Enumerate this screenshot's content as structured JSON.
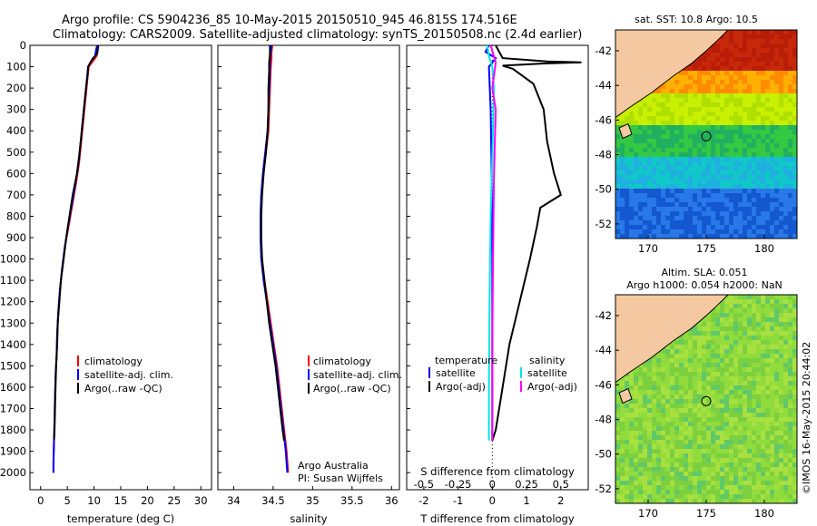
{
  "header": {
    "line1": "Argo profile: CS 5904236_85 10-May-2015 20150510_945 46.815S 174.516E",
    "line2": "Climatology: CARS2009. Satellite-adjusted climatology: synTS_20150508.nc (2.4d earlier)"
  },
  "chart_data": [
    {
      "name": "temperature-profile",
      "type": "line",
      "xlabel": "temperature (deg C)",
      "xticks": [
        "0",
        "5",
        "10",
        "15",
        "20",
        "25",
        "30"
      ],
      "xlim": [
        -2,
        32
      ],
      "ylim": [
        0,
        2080
      ],
      "yticks": [
        "0",
        "100",
        "200",
        "300",
        "400",
        "500",
        "600",
        "700",
        "800",
        "900",
        "1000",
        "1100",
        "1200",
        "1300",
        "1400",
        "1500",
        "1600",
        "1700",
        "1800",
        "1900",
        "2000"
      ],
      "legend": [
        "climatology",
        "satellite-adj. clim.",
        "Argo(..raw -QC)"
      ],
      "series": [
        {
          "name": "climatology",
          "color": "#ff0000",
          "points": [
            [
              10.8,
              0
            ],
            [
              10.6,
              20
            ],
            [
              10.5,
              50
            ],
            [
              9.9,
              70
            ],
            [
              9.0,
              100
            ],
            [
              8.8,
              150
            ],
            [
              8.4,
              250
            ],
            [
              8.0,
              350
            ],
            [
              7.6,
              450
            ],
            [
              7.2,
              550
            ],
            [
              6.6,
              650
            ],
            [
              5.9,
              750
            ],
            [
              5.2,
              850
            ],
            [
              4.5,
              950
            ],
            [
              4.0,
              1050
            ],
            [
              3.6,
              1150
            ],
            [
              3.3,
              1250
            ],
            [
              3.1,
              1350
            ],
            [
              3.0,
              1450
            ],
            [
              2.8,
              1550
            ],
            [
              2.7,
              1650
            ],
            [
              2.6,
              1750
            ],
            [
              2.5,
              1850
            ],
            [
              2.4,
              1950
            ],
            [
              2.4,
              2000
            ]
          ]
        },
        {
          "name": "satellite-adj. clim.",
          "color": "#0000ff",
          "points": [
            [
              10.6,
              0
            ],
            [
              10.4,
              20
            ],
            [
              10.2,
              50
            ],
            [
              9.6,
              70
            ],
            [
              8.9,
              100
            ],
            [
              8.7,
              150
            ],
            [
              8.3,
              250
            ],
            [
              7.9,
              350
            ],
            [
              7.5,
              450
            ],
            [
              7.1,
              550
            ],
            [
              6.5,
              650
            ],
            [
              5.8,
              750
            ],
            [
              5.1,
              850
            ],
            [
              4.5,
              950
            ],
            [
              4.0,
              1050
            ],
            [
              3.6,
              1150
            ],
            [
              3.3,
              1250
            ],
            [
              3.1,
              1350
            ],
            [
              3.0,
              1450
            ],
            [
              2.8,
              1550
            ],
            [
              2.7,
              1650
            ],
            [
              2.6,
              1750
            ],
            [
              2.5,
              1850
            ],
            [
              2.4,
              1950
            ],
            [
              2.4,
              2000
            ]
          ]
        },
        {
          "name": "Argo(..raw -QC)",
          "color": "#000000",
          "points": [
            [
              10.8,
              0
            ],
            [
              10.7,
              20
            ],
            [
              10.6,
              40
            ],
            [
              9.8,
              60
            ],
            [
              9.3,
              80
            ],
            [
              8.9,
              100
            ],
            [
              8.8,
              140
            ],
            [
              8.5,
              200
            ],
            [
              8.1,
              300
            ],
            [
              7.7,
              400
            ],
            [
              7.3,
              500
            ],
            [
              6.8,
              600
            ],
            [
              6.0,
              700
            ],
            [
              5.4,
              800
            ],
            [
              4.8,
              900
            ],
            [
              4.3,
              1000
            ],
            [
              3.8,
              1100
            ],
            [
              3.5,
              1200
            ],
            [
              3.2,
              1300
            ],
            [
              3.1,
              1400
            ],
            [
              2.9,
              1500
            ],
            [
              2.8,
              1600
            ],
            [
              2.7,
              1700
            ],
            [
              2.6,
              1800
            ],
            [
              2.5,
              1850
            ]
          ]
        }
      ]
    },
    {
      "name": "salinity-profile",
      "type": "line",
      "xlabel": "salinity",
      "xticks": [
        "34",
        "34.5",
        "35",
        "35.5",
        "36"
      ],
      "xlim": [
        33.8,
        36.1
      ],
      "ylim": [
        0,
        2080
      ],
      "legend": [
        "climatology",
        "satellite-adj. clim.",
        "Argo(..raw -QC)"
      ],
      "series": [
        {
          "name": "climatology",
          "color": "#ff0000",
          "points": [
            [
              34.49,
              0
            ],
            [
              34.48,
              30
            ],
            [
              34.48,
              60
            ],
            [
              34.47,
              100
            ],
            [
              34.46,
              200
            ],
            [
              34.45,
              300
            ],
            [
              34.44,
              400
            ],
            [
              34.41,
              500
            ],
            [
              34.38,
              600
            ],
            [
              34.35,
              700
            ],
            [
              34.34,
              800
            ],
            [
              34.34,
              900
            ],
            [
              34.36,
              1000
            ],
            [
              34.39,
              1100
            ],
            [
              34.43,
              1200
            ],
            [
              34.47,
              1300
            ],
            [
              34.51,
              1400
            ],
            [
              34.55,
              1500
            ],
            [
              34.58,
              1600
            ],
            [
              34.61,
              1700
            ],
            [
              34.64,
              1800
            ],
            [
              34.67,
              1900
            ],
            [
              34.69,
              2000
            ]
          ]
        },
        {
          "name": "satellite-adj. clim.",
          "color": "#0000ff",
          "points": [
            [
              34.48,
              0
            ],
            [
              34.47,
              30
            ],
            [
              34.46,
              60
            ],
            [
              34.46,
              100
            ],
            [
              34.45,
              200
            ],
            [
              34.44,
              300
            ],
            [
              34.43,
              400
            ],
            [
              34.4,
              500
            ],
            [
              34.37,
              600
            ],
            [
              34.35,
              700
            ],
            [
              34.34,
              800
            ],
            [
              34.34,
              900
            ],
            [
              34.35,
              1000
            ],
            [
              34.38,
              1100
            ],
            [
              34.42,
              1200
            ],
            [
              34.46,
              1300
            ],
            [
              34.5,
              1400
            ],
            [
              34.54,
              1500
            ],
            [
              34.57,
              1600
            ],
            [
              34.6,
              1700
            ],
            [
              34.63,
              1800
            ],
            [
              34.66,
              1900
            ],
            [
              34.68,
              2000
            ]
          ]
        },
        {
          "name": "Argo(..raw -QC)",
          "color": "#000000",
          "points": [
            [
              34.46,
              0
            ],
            [
              34.46,
              40
            ],
            [
              34.45,
              80
            ],
            [
              34.45,
              120
            ],
            [
              34.44,
              200
            ],
            [
              34.44,
              300
            ],
            [
              34.43,
              400
            ],
            [
              34.41,
              500
            ],
            [
              34.38,
              600
            ],
            [
              34.36,
              700
            ],
            [
              34.35,
              800
            ],
            [
              34.35,
              900
            ],
            [
              34.36,
              1000
            ],
            [
              34.39,
              1100
            ],
            [
              34.42,
              1200
            ],
            [
              34.45,
              1300
            ],
            [
              34.49,
              1400
            ],
            [
              34.53,
              1500
            ],
            [
              34.56,
              1600
            ],
            [
              34.59,
              1700
            ],
            [
              34.62,
              1800
            ],
            [
              34.64,
              1850
            ]
          ]
        }
      ]
    },
    {
      "name": "difference-profile",
      "type": "line",
      "xlabel": "T difference from climatology",
      "xlabel_top": "S difference from climatology",
      "xticks_T": [
        "-2",
        "-1",
        "0",
        "1",
        "2"
      ],
      "xticks_S": [
        "-0.5",
        "-0.25",
        "0",
        "0.25",
        "0.5"
      ],
      "xlim": [
        -2.5,
        2.8
      ],
      "ylim": [
        0,
        2080
      ],
      "legend_temperature": {
        "title": "temperature",
        "items": [
          "satellite",
          "Argo(-adj)"
        ]
      },
      "legend_salinity": {
        "title": "salinity",
        "items": [
          "satellite",
          "Argo(-adj)"
        ]
      },
      "series": [
        {
          "name": "T satellite",
          "color": "#0000ff",
          "points": [
            [
              -0.1,
              0
            ],
            [
              -0.2,
              30
            ],
            [
              0.1,
              60
            ],
            [
              -0.1,
              100
            ],
            [
              -0.05,
              300
            ],
            [
              -0.02,
              600
            ],
            [
              0,
              1000
            ],
            [
              0,
              1850
            ]
          ]
        },
        {
          "name": "T Argo(-adj)",
          "color": "#000000",
          "points": [
            [
              0.1,
              0
            ],
            [
              0.2,
              30
            ],
            [
              0.3,
              60
            ],
            [
              1.6,
              75
            ],
            [
              2.6,
              80
            ],
            [
              1.5,
              85
            ],
            [
              0.3,
              95
            ],
            [
              0.6,
              110
            ],
            [
              1.2,
              180
            ],
            [
              1.5,
              300
            ],
            [
              1.6,
              450
            ],
            [
              1.8,
              600
            ],
            [
              2.0,
              700
            ],
            [
              1.4,
              760
            ],
            [
              1.3,
              850
            ],
            [
              1.1,
              1000
            ],
            [
              0.8,
              1200
            ],
            [
              0.5,
              1400
            ],
            [
              0.3,
              1600
            ],
            [
              0.1,
              1800
            ],
            [
              0,
              1850
            ]
          ]
        },
        {
          "name": "S satellite",
          "color": "#00e5e5",
          "points": [
            [
              -0.15,
              0
            ],
            [
              -0.1,
              50
            ],
            [
              0,
              100
            ],
            [
              0.05,
              200
            ],
            [
              0.02,
              400
            ],
            [
              -0.05,
              800
            ],
            [
              -0.08,
              1200
            ],
            [
              -0.1,
              1600
            ],
            [
              -0.1,
              1850
            ]
          ]
        },
        {
          "name": "S Argo(-adj)",
          "color": "#ff00ff",
          "points": [
            [
              -0.05,
              0
            ],
            [
              0.1,
              80
            ],
            [
              0.0,
              200
            ],
            [
              0.1,
              300
            ],
            [
              0.05,
              600
            ],
            [
              0.02,
              1000
            ],
            [
              0.0,
              1400
            ],
            [
              0,
              1850
            ]
          ]
        }
      ]
    },
    {
      "name": "sst-map",
      "type": "heatmap",
      "title": "sat. SST: 10.8 Argo: 10.5",
      "xticks": [
        "170",
        "175",
        "180"
      ],
      "yticks": [
        "-42",
        "-44",
        "-46",
        "-48",
        "-50",
        "-52"
      ]
    },
    {
      "name": "sla-map",
      "type": "heatmap",
      "title1": "Altim. SLA: 0.051",
      "title2": "Argo h1000: 0.054 h2000: NaN",
      "xticks": [
        "170",
        "175",
        "180"
      ],
      "yticks": [
        "-42",
        "-44",
        "-46",
        "-48",
        "-50",
        "-52"
      ]
    }
  ],
  "text_blocks": {
    "argo_australia": "Argo Australia",
    "pi": "PI: Susan Wijffels",
    "imos": "©IMOS 16-May-2015 20:44:02"
  }
}
